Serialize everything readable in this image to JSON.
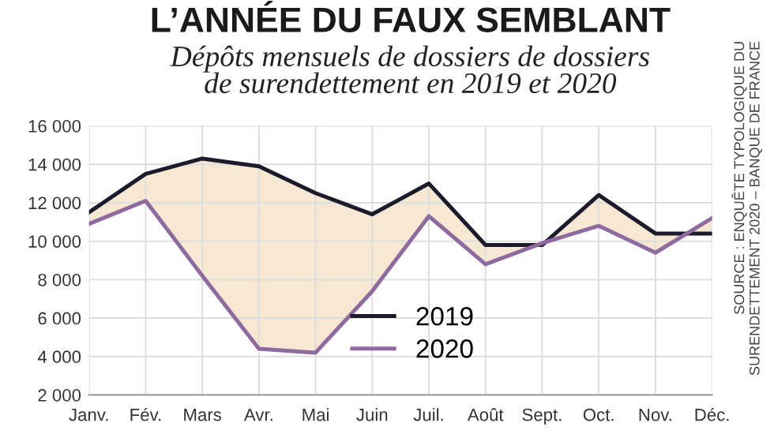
{
  "chart_data": {
    "type": "line",
    "title": "L’ANNÉE DU FAUX SEMBLANT",
    "subtitle": "Dépôts mensuels de dossiers de dossiers\nde surendettement en 2019 et 2020",
    "categories": [
      "Janv.",
      "Fév.",
      "Mars",
      "Avr.",
      "Mai",
      "Juin",
      "Juil.",
      "Août",
      "Sept.",
      "Oct.",
      "Nov.",
      "Déc."
    ],
    "series": [
      {
        "name": "2019",
        "color": "#1c1b2b",
        "values": [
          11500,
          13500,
          14300,
          13900,
          12500,
          11400,
          13000,
          9800,
          9800,
          12400,
          10400,
          10400
        ],
        "lower": [
          10900,
          12100,
          8200,
          4400,
          4200,
          7400,
          11300,
          8800,
          9900,
          10800,
          9400,
          11200
        ],
        "upper": [
          11500,
          13500,
          14300,
          13900,
          12500,
          11400,
          13000,
          9800,
          9800,
          12400,
          10400,
          10400
        ]
      },
      {
        "name": "2020",
        "color": "#8e6a9e",
        "values": [
          10900,
          12100,
          8200,
          4400,
          4200,
          7400,
          11300,
          8800,
          9900,
          10800,
          9400,
          11200
        ]
      }
    ],
    "ylim": [
      2000,
      16000
    ],
    "yticks": [
      {
        "value": 2000,
        "label": "2 000"
      },
      {
        "value": 4000,
        "label": "4 000"
      },
      {
        "value": 6000,
        "label": "6 000"
      },
      {
        "value": 8000,
        "label": "8 000"
      },
      {
        "value": 10000,
        "label": "10 000"
      },
      {
        "value": 12000,
        "label": "12 000"
      },
      {
        "value": 14000,
        "label": "14 000"
      },
      {
        "value": 16000,
        "label": "16 000"
      }
    ],
    "grid": true,
    "legend": "bottom",
    "marker": "none",
    "line_style": "solid",
    "annotations": [
      "SOURCE : ENQUÊTE TYPOLOGIQUE DU\nSURENDETTEMENT 2020 – BANQUE DE FRANCE"
    ]
  }
}
